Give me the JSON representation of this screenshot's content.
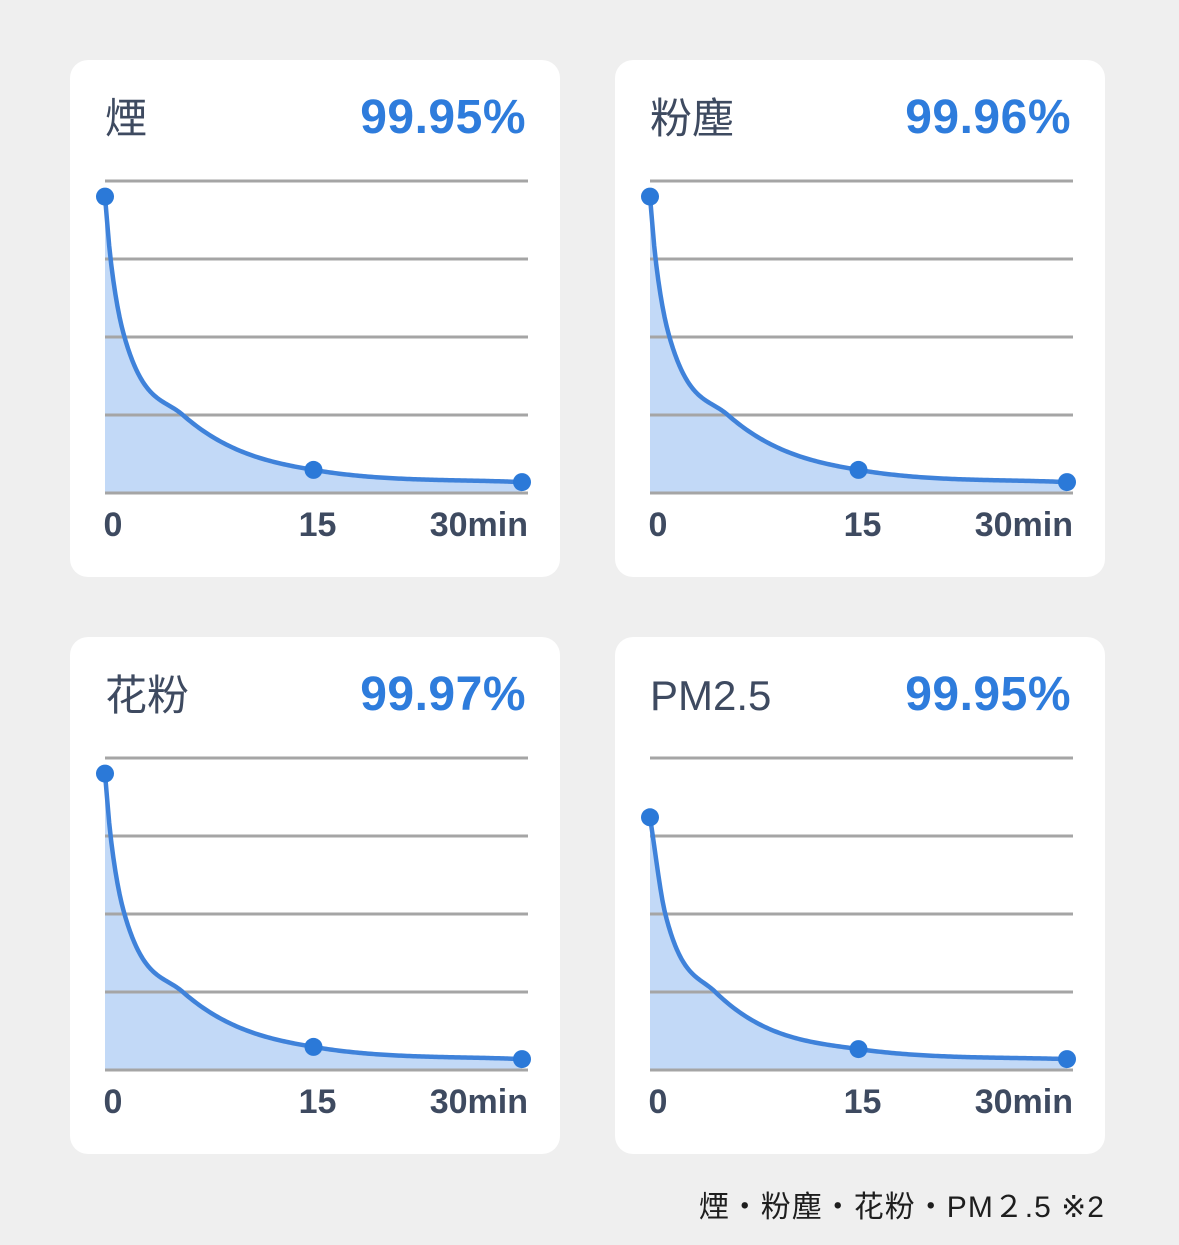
{
  "page": {
    "background": "#efefef",
    "footnote": "煙・粉塵・花粉・PM２.5 ※2"
  },
  "colors": {
    "card_bg": "#ffffff",
    "title": "#3e4a60",
    "accent": "#2e7cdc",
    "curve": "#3f82da",
    "dot": "#2b79d8",
    "fill": "#c2d9f7",
    "grid": "#a5a5a5",
    "tick": "#3e4a60",
    "footnote": "#1e1e1e"
  },
  "chart_data": [
    {
      "type": "area",
      "title": "煙",
      "efficiency": "99.95%",
      "x": [
        0,
        15,
        30
      ],
      "values": [
        95,
        7.4,
        3.5
      ],
      "curve_anchors": [
        [
          0,
          95
        ],
        [
          0.4,
          75
        ],
        [
          1.4,
          50
        ],
        [
          5.6,
          25
        ],
        [
          15,
          7.4
        ],
        [
          30,
          3.5
        ]
      ],
      "xtick_labels": [
        "0",
        "15",
        "30min"
      ],
      "xlim": [
        0,
        30
      ],
      "ylim": [
        0,
        100
      ],
      "grid_divisions": 4,
      "grid": true,
      "legend": false
    },
    {
      "type": "area",
      "title": "粉塵",
      "efficiency": "99.96%",
      "x": [
        0,
        15,
        30
      ],
      "values": [
        95,
        7.4,
        3.5
      ],
      "curve_anchors": [
        [
          0,
          95
        ],
        [
          0.4,
          75
        ],
        [
          1.4,
          50
        ],
        [
          5.6,
          25
        ],
        [
          15,
          7.4
        ],
        [
          30,
          3.5
        ]
      ],
      "xtick_labels": [
        "0",
        "15",
        "30min"
      ],
      "xlim": [
        0,
        30
      ],
      "ylim": [
        0,
        100
      ],
      "grid_divisions": 4,
      "grid": true,
      "legend": false
    },
    {
      "type": "area",
      "title": "花粉",
      "efficiency": "99.97%",
      "x": [
        0,
        15,
        30
      ],
      "values": [
        95,
        7.4,
        3.5
      ],
      "curve_anchors": [
        [
          0,
          95
        ],
        [
          0.4,
          75
        ],
        [
          1.4,
          50
        ],
        [
          5.6,
          25
        ],
        [
          15,
          7.4
        ],
        [
          30,
          3.5
        ]
      ],
      "xtick_labels": [
        "0",
        "15",
        "30min"
      ],
      "xlim": [
        0,
        30
      ],
      "ylim": [
        0,
        100
      ],
      "grid_divisions": 4,
      "grid": true,
      "legend": false
    },
    {
      "type": "area",
      "title": "PM2.5",
      "efficiency": "99.95%",
      "x": [
        0,
        15,
        30
      ],
      "values": [
        81,
        6.7,
        3.5
      ],
      "curve_anchors": [
        [
          0,
          81
        ],
        [
          1.1,
          50
        ],
        [
          4.7,
          25
        ],
        [
          15,
          6.7
        ],
        [
          30,
          3.5
        ]
      ],
      "xtick_labels": [
        "0",
        "15",
        "30min"
      ],
      "xlim": [
        0,
        30
      ],
      "ylim": [
        0,
        100
      ],
      "grid_divisions": 4,
      "grid": true,
      "legend": false
    }
  ]
}
